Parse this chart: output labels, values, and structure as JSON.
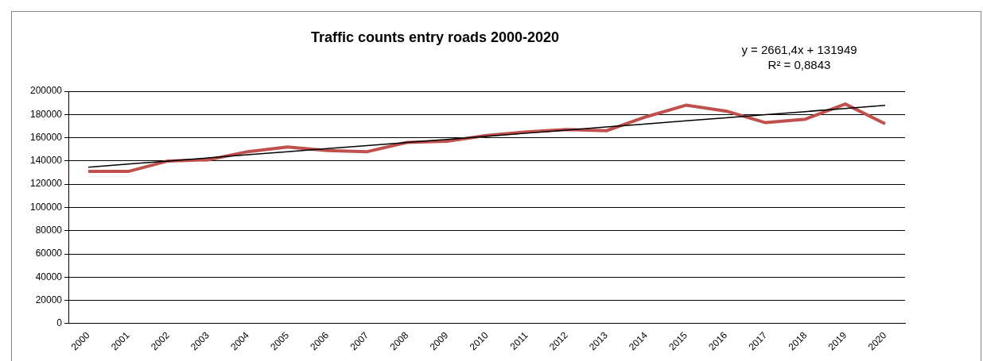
{
  "chart_data": {
    "type": "line",
    "title": "Traffic counts entry roads 2000-2020",
    "categories": [
      "2000",
      "2001",
      "2002",
      "2003",
      "2004",
      "2005",
      "2006",
      "2007",
      "2008",
      "2009",
      "2010",
      "2011",
      "2012",
      "2013",
      "2014",
      "2015",
      "2016",
      "2017",
      "2018",
      "2019",
      "2020"
    ],
    "series": [
      {
        "color": "#c0504d",
        "values": [
          131000,
          131000,
          140000,
          141000,
          148000,
          152000,
          149000,
          148000,
          156000,
          157000,
          162000,
          165000,
          167000,
          166000,
          178000,
          188000,
          183000,
          173000,
          176000,
          189000,
          172000
        ]
      },
      {
        "type": "line",
        "color": "#000000",
        "values": [
          134600,
          137300,
          139900,
          142600,
          145300,
          147900,
          150600,
          153200,
          155900,
          158600,
          161200,
          163900,
          166500,
          169200,
          171900,
          174500,
          177200,
          179900,
          182500,
          185200,
          187800
        ]
      }
    ],
    "ylim": [
      0,
      200000
    ],
    "yticks": [
      0,
      20000,
      40000,
      60000,
      80000,
      100000,
      120000,
      140000,
      160000,
      180000,
      200000
    ],
    "grid": "y",
    "legend": false,
    "marker": "none",
    "annotations": [
      "y = 2661,4x + 131949",
      "R² = 0,8843"
    ]
  }
}
